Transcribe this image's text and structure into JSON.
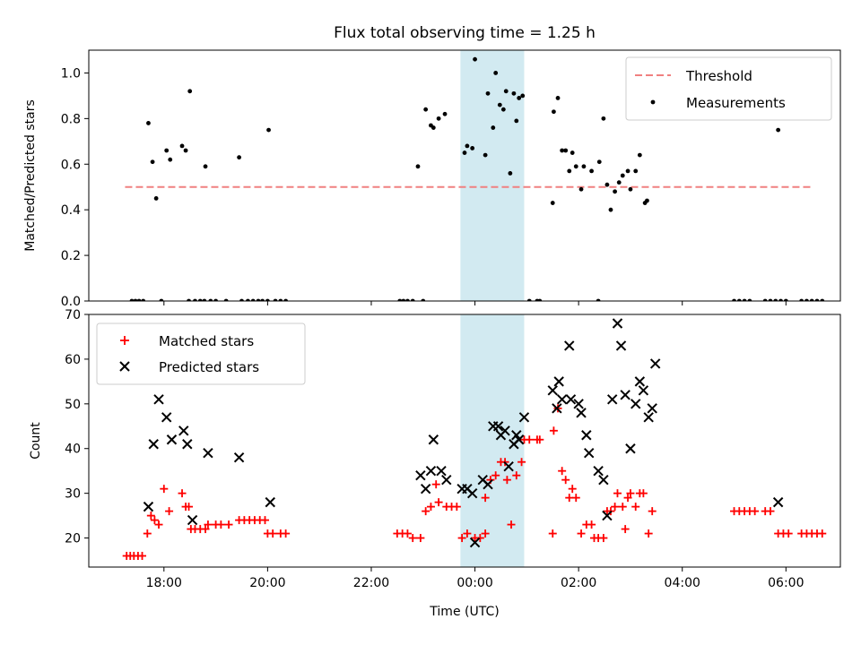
{
  "title": "Flux total observing time = 1.25 h",
  "colors": {
    "threshold": "#f08080",
    "measurements": "#000000",
    "matched": "#ff0000",
    "predicted": "#000000",
    "span": "#add8e6"
  },
  "chart_data": [
    {
      "type": "scatter",
      "title": "",
      "xlabel": "",
      "ylabel": "Matched/Predicted stars",
      "xlim": [
        16.55,
        31.05
      ],
      "ylim": [
        0,
        1.1
      ],
      "yticks": [
        "0.0",
        "0.2",
        "0.4",
        "0.6",
        "0.8",
        "1.0"
      ],
      "grid": false,
      "legend_position": "top-right",
      "shaded_span": [
        23.72,
        24.95
      ],
      "series": [
        {
          "name": "Threshold",
          "type": "line",
          "style": "dashed",
          "x": [
            17.25,
            30.5
          ],
          "y": [
            0.5,
            0.5
          ]
        },
        {
          "name": "Measurements",
          "type": "scatter",
          "points": [
            [
              17.38,
              0
            ],
            [
              17.45,
              0
            ],
            [
              17.52,
              0
            ],
            [
              17.6,
              0
            ],
            [
              17.7,
              0.78
            ],
            [
              17.78,
              0.61
            ],
            [
              17.85,
              0.45
            ],
            [
              17.95,
              0
            ],
            [
              18.05,
              0.66
            ],
            [
              18.12,
              0.62
            ],
            [
              18.35,
              0.68
            ],
            [
              18.42,
              0.66
            ],
            [
              18.5,
              0.92
            ],
            [
              18.48,
              0
            ],
            [
              18.6,
              0
            ],
            [
              18.7,
              0
            ],
            [
              18.8,
              0.59
            ],
            [
              18.78,
              0
            ],
            [
              18.9,
              0
            ],
            [
              19.0,
              0
            ],
            [
              19.2,
              0
            ],
            [
              19.45,
              0.63
            ],
            [
              19.5,
              0
            ],
            [
              19.62,
              0
            ],
            [
              19.72,
              0
            ],
            [
              19.82,
              0
            ],
            [
              19.9,
              0
            ],
            [
              20.0,
              0
            ],
            [
              20.02,
              0.75
            ],
            [
              20.15,
              0
            ],
            [
              20.25,
              0
            ],
            [
              20.35,
              0
            ],
            [
              22.55,
              0
            ],
            [
              22.62,
              0
            ],
            [
              22.7,
              0
            ],
            [
              22.8,
              0
            ],
            [
              22.9,
              0.59
            ],
            [
              23.0,
              0
            ],
            [
              23.05,
              0.84
            ],
            [
              23.15,
              0.77
            ],
            [
              23.2,
              0.76
            ],
            [
              23.3,
              0.8
            ],
            [
              23.42,
              0.82
            ],
            [
              23.8,
              0.65
            ],
            [
              23.85,
              0.68
            ],
            [
              23.95,
              0.67
            ],
            [
              24.0,
              1.06
            ],
            [
              24.2,
              0.64
            ],
            [
              24.25,
              0.91
            ],
            [
              24.35,
              0.76
            ],
            [
              24.4,
              1.0
            ],
            [
              24.48,
              0.86
            ],
            [
              24.55,
              0.84
            ],
            [
              24.6,
              0.92
            ],
            [
              24.68,
              0.56
            ],
            [
              24.75,
              0.91
            ],
            [
              24.8,
              0.79
            ],
            [
              24.85,
              0.89
            ],
            [
              24.92,
              0.9
            ],
            [
              25.05,
              0
            ],
            [
              25.2,
              0
            ],
            [
              25.25,
              0
            ],
            [
              25.5,
              0.43
            ],
            [
              25.52,
              0.83
            ],
            [
              25.6,
              0.89
            ],
            [
              25.68,
              0.66
            ],
            [
              25.75,
              0.66
            ],
            [
              25.82,
              0.57
            ],
            [
              25.88,
              0.65
            ],
            [
              25.95,
              0.59
            ],
            [
              26.05,
              0.49
            ],
            [
              26.1,
              0.59
            ],
            [
              26.25,
              0.57
            ],
            [
              26.38,
              0
            ],
            [
              26.4,
              0.61
            ],
            [
              26.48,
              0.8
            ],
            [
              26.55,
              0.51
            ],
            [
              26.62,
              0.4
            ],
            [
              26.7,
              0.48
            ],
            [
              26.78,
              0.52
            ],
            [
              26.85,
              0.55
            ],
            [
              26.95,
              0.57
            ],
            [
              27.0,
              0.49
            ],
            [
              27.1,
              0.57
            ],
            [
              27.18,
              0.64
            ],
            [
              27.28,
              0.43
            ],
            [
              27.32,
              0.44
            ],
            [
              29.0,
              0
            ],
            [
              29.1,
              0
            ],
            [
              29.2,
              0
            ],
            [
              29.3,
              0
            ],
            [
              29.6,
              0
            ],
            [
              29.7,
              0
            ],
            [
              29.8,
              0
            ],
            [
              29.85,
              0.75
            ],
            [
              29.9,
              0
            ],
            [
              30.0,
              0
            ],
            [
              30.3,
              0
            ],
            [
              30.4,
              0
            ],
            [
              30.5,
              0
            ],
            [
              30.6,
              0
            ],
            [
              30.7,
              0
            ]
          ]
        }
      ]
    },
    {
      "type": "scatter",
      "title": "",
      "xlabel": "Time (UTC)",
      "ylabel": "Count",
      "xlim": [
        16.55,
        31.05
      ],
      "ylim": [
        13.5,
        70
      ],
      "xticks": [
        {
          "value": 18,
          "label": "18:00"
        },
        {
          "value": 20,
          "label": "20:00"
        },
        {
          "value": 22,
          "label": "22:00"
        },
        {
          "value": 24,
          "label": "00:00"
        },
        {
          "value": 26,
          "label": "02:00"
        },
        {
          "value": 28,
          "label": "04:00"
        },
        {
          "value": 30,
          "label": "06:00"
        }
      ],
      "yticks": [
        "20",
        "30",
        "40",
        "50",
        "60",
        "70"
      ],
      "grid": false,
      "legend_position": "top-left",
      "shaded_span": [
        23.72,
        24.95
      ],
      "series": [
        {
          "name": "Matched stars",
          "marker": "+",
          "points": [
            [
              17.28,
              16
            ],
            [
              17.35,
              16
            ],
            [
              17.42,
              16
            ],
            [
              17.5,
              16
            ],
            [
              17.58,
              16
            ],
            [
              17.68,
              21
            ],
            [
              17.75,
              25
            ],
            [
              17.82,
              24
            ],
            [
              17.9,
              23
            ],
            [
              18.0,
              31
            ],
            [
              18.1,
              26
            ],
            [
              18.35,
              30
            ],
            [
              18.42,
              27
            ],
            [
              18.48,
              27
            ],
            [
              18.52,
              22
            ],
            [
              18.6,
              22
            ],
            [
              18.7,
              22
            ],
            [
              18.8,
              22
            ],
            [
              18.85,
              23
            ],
            [
              19.0,
              23
            ],
            [
              19.1,
              23
            ],
            [
              19.25,
              23
            ],
            [
              19.45,
              24
            ],
            [
              19.55,
              24
            ],
            [
              19.65,
              24
            ],
            [
              19.75,
              24
            ],
            [
              19.85,
              24
            ],
            [
              19.95,
              24
            ],
            [
              20.0,
              21
            ],
            [
              20.1,
              21
            ],
            [
              20.25,
              21
            ],
            [
              20.35,
              21
            ],
            [
              22.5,
              21
            ],
            [
              22.6,
              21
            ],
            [
              22.7,
              21
            ],
            [
              22.8,
              20
            ],
            [
              22.95,
              20
            ],
            [
              23.05,
              26
            ],
            [
              23.15,
              27
            ],
            [
              23.25,
              32
            ],
            [
              23.3,
              28
            ],
            [
              23.45,
              27
            ],
            [
              23.55,
              27
            ],
            [
              23.65,
              27
            ],
            [
              23.75,
              20
            ],
            [
              23.85,
              21
            ],
            [
              24.0,
              20
            ],
            [
              24.1,
              20
            ],
            [
              24.2,
              21
            ],
            [
              24.2,
              29
            ],
            [
              24.3,
              33
            ],
            [
              24.4,
              34
            ],
            [
              24.5,
              37
            ],
            [
              24.58,
              37
            ],
            [
              24.62,
              33
            ],
            [
              24.7,
              23
            ],
            [
              24.8,
              34
            ],
            [
              24.9,
              37
            ],
            [
              24.95,
              42
            ],
            [
              25.05,
              42
            ],
            [
              25.2,
              42
            ],
            [
              25.25,
              42
            ],
            [
              25.5,
              21
            ],
            [
              25.52,
              44
            ],
            [
              25.6,
              49
            ],
            [
              25.68,
              35
            ],
            [
              25.75,
              33
            ],
            [
              25.82,
              29
            ],
            [
              25.88,
              31
            ],
            [
              25.95,
              29
            ],
            [
              26.05,
              21
            ],
            [
              26.15,
              23
            ],
            [
              26.25,
              23
            ],
            [
              26.3,
              20
            ],
            [
              26.38,
              20
            ],
            [
              26.48,
              20
            ],
            [
              26.55,
              26
            ],
            [
              26.62,
              26
            ],
            [
              26.7,
              27
            ],
            [
              26.75,
              30
            ],
            [
              26.85,
              27
            ],
            [
              26.9,
              22
            ],
            [
              26.95,
              29
            ],
            [
              27.0,
              30
            ],
            [
              27.1,
              27
            ],
            [
              27.18,
              30
            ],
            [
              27.25,
              30
            ],
            [
              27.35,
              21
            ],
            [
              27.42,
              26
            ],
            [
              29.0,
              26
            ],
            [
              29.1,
              26
            ],
            [
              29.2,
              26
            ],
            [
              29.3,
              26
            ],
            [
              29.4,
              26
            ],
            [
              29.6,
              26
            ],
            [
              29.7,
              26
            ],
            [
              29.85,
              21
            ],
            [
              29.95,
              21
            ],
            [
              30.05,
              21
            ],
            [
              30.3,
              21
            ],
            [
              30.4,
              21
            ],
            [
              30.5,
              21
            ],
            [
              30.6,
              21
            ],
            [
              30.7,
              21
            ]
          ]
        },
        {
          "name": "Predicted stars",
          "marker": "x",
          "points": [
            [
              17.7,
              27
            ],
            [
              17.8,
              41
            ],
            [
              17.9,
              51
            ],
            [
              18.05,
              47
            ],
            [
              18.15,
              42
            ],
            [
              18.38,
              44
            ],
            [
              18.45,
              41
            ],
            [
              18.55,
              24
            ],
            [
              18.85,
              39
            ],
            [
              19.45,
              38
            ],
            [
              20.05,
              28
            ],
            [
              22.95,
              34
            ],
            [
              23.05,
              31
            ],
            [
              23.15,
              35
            ],
            [
              23.2,
              42
            ],
            [
              23.35,
              35
            ],
            [
              23.45,
              33
            ],
            [
              23.75,
              31
            ],
            [
              23.85,
              31
            ],
            [
              23.95,
              30
            ],
            [
              24.0,
              19
            ],
            [
              24.15,
              33
            ],
            [
              24.25,
              32
            ],
            [
              24.35,
              45
            ],
            [
              24.45,
              45
            ],
            [
              24.5,
              43
            ],
            [
              24.58,
              44
            ],
            [
              24.65,
              36
            ],
            [
              24.75,
              41
            ],
            [
              24.8,
              43
            ],
            [
              24.85,
              42
            ],
            [
              24.95,
              47
            ],
            [
              25.5,
              53
            ],
            [
              25.58,
              49
            ],
            [
              25.62,
              55
            ],
            [
              25.68,
              51
            ],
            [
              25.82,
              63
            ],
            [
              25.85,
              51
            ],
            [
              26.0,
              50
            ],
            [
              26.05,
              48
            ],
            [
              26.15,
              43
            ],
            [
              26.2,
              39
            ],
            [
              26.38,
              35
            ],
            [
              26.48,
              33
            ],
            [
              26.55,
              25
            ],
            [
              26.65,
              51
            ],
            [
              26.75,
              68
            ],
            [
              26.82,
              63
            ],
            [
              26.9,
              52
            ],
            [
              27.0,
              40
            ],
            [
              27.1,
              50
            ],
            [
              27.18,
              55
            ],
            [
              27.25,
              53
            ],
            [
              27.35,
              47
            ],
            [
              27.42,
              49
            ],
            [
              27.48,
              59
            ],
            [
              29.85,
              28
            ]
          ]
        }
      ]
    }
  ]
}
